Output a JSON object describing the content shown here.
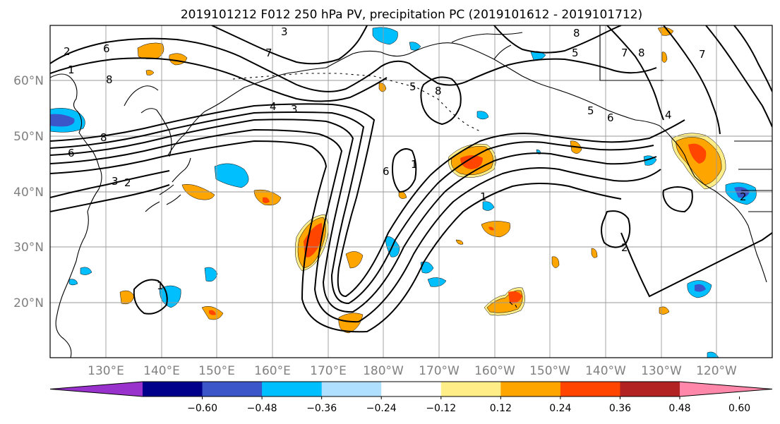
{
  "title": "2019101212 F012 250 hPa PV, precipitation PC (2019101612 - 2019101712)",
  "map": {
    "lat_labels": [
      "60°N",
      "50°N",
      "40°N",
      "30°N",
      "20°N"
    ],
    "lon_labels": [
      "130°E",
      "140°E",
      "150°E",
      "160°E",
      "170°E",
      "180°W",
      "170°W",
      "160°W",
      "150°W",
      "140°W",
      "130°W",
      "120°W"
    ],
    "pv_contour_labels": [
      "6",
      "8",
      "3",
      "7",
      "5",
      "8",
      "4",
      "3",
      "8",
      "6",
      "3",
      "2",
      "6",
      "1",
      "1",
      "8",
      "7",
      "8",
      "5",
      "6",
      "5",
      "4",
      "7",
      "2",
      "2",
      "1",
      "2",
      "1"
    ]
  },
  "colorbar": {
    "colors": [
      "#9932cc",
      "#00008b",
      "#3a56c8",
      "#00bfff",
      "#b0e0ff",
      "#ffffff",
      "#ffee88",
      "#ffa500",
      "#ff4500",
      "#b22222",
      "#ff88aa"
    ],
    "tick_labels": [
      "-0.60",
      "-0.48",
      "-0.36",
      "-0.24",
      "-0.12",
      "0.12",
      "0.24",
      "0.36",
      "0.48",
      "0.60"
    ],
    "tick_values": [
      -0.6,
      -0.48,
      -0.36,
      -0.24,
      -0.12,
      0.12,
      0.24,
      0.36,
      0.48,
      0.6
    ]
  }
}
